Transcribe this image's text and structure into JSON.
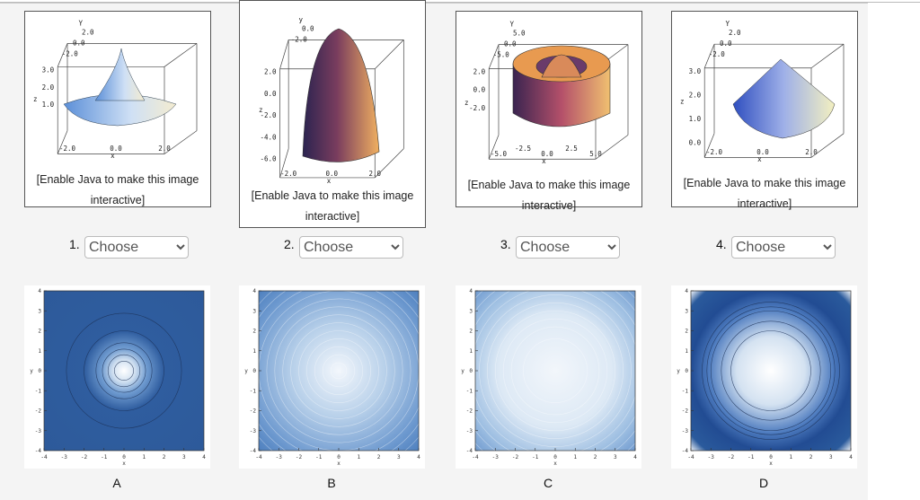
{
  "panels": [
    {
      "number": "1.",
      "caption": "[Enable Java to make this image interactive]",
      "select": "Choose",
      "surface": {
        "x_label": "x",
        "y_label": "Y",
        "z_label": "z",
        "x_ticks": [
          "-2.0",
          "0.0",
          "2.0"
        ],
        "y_ticks": [
          "2.0",
          "0.0",
          "-2.0"
        ],
        "z_ticks": [
          "3.0",
          "2.0",
          "1.0"
        ]
      }
    },
    {
      "number": "2.",
      "caption": "[Enable Java to make this image interactive]",
      "select": "Choose",
      "surface": {
        "x_label": "x",
        "y_label": "y",
        "z_label": "z",
        "x_ticks": [
          "-2.0",
          "0.0",
          "2.0"
        ],
        "y_ticks": [
          "0.0",
          "-2.0"
        ],
        "z_ticks": [
          "2.0",
          "0.0",
          "-2.0",
          "-4.0",
          "-6.0"
        ]
      }
    },
    {
      "number": "3.",
      "caption": "[Enable Java to make this image interactive]",
      "select": "Choose",
      "surface": {
        "x_label": "x",
        "y_label": "Y",
        "z_label": "z",
        "x_ticks": [
          "-5.0",
          "-2.5",
          "0.0",
          "2.5",
          "5.0"
        ],
        "y_ticks": [
          "5.0",
          "0.0",
          "-5.0"
        ],
        "z_ticks": [
          "2.0",
          "0.0",
          "-2.0"
        ]
      }
    },
    {
      "number": "4.",
      "caption": "[Enable Java to make this image interactive]",
      "select": "Choose",
      "surface": {
        "x_label": "x",
        "y_label": "Y",
        "z_label": "z",
        "x_ticks": [
          "-2.0",
          "0.0",
          "2.0"
        ],
        "y_ticks": [
          "2.0",
          "0.0",
          "-2.0"
        ],
        "z_ticks": [
          "3.0",
          "2.0",
          "1.0",
          "0.0"
        ]
      }
    }
  ],
  "plots": [
    {
      "label": "A"
    },
    {
      "label": "B"
    },
    {
      "label": "C"
    },
    {
      "label": "D"
    }
  ],
  "plot_axes": {
    "ticks": [
      -4,
      -3,
      -2,
      -1,
      0,
      1,
      2,
      3,
      4
    ],
    "x_label": "x",
    "y_label": "y"
  }
}
